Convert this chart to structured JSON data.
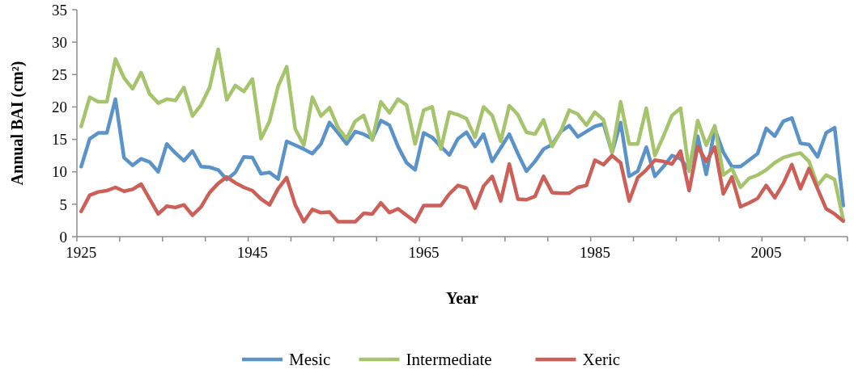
{
  "chart_data": {
    "type": "line",
    "xlabel": "Year",
    "ylabel": "Annual BAI (cm²)",
    "categories": [
      "1925",
      null,
      null,
      null,
      null,
      null,
      null,
      null,
      null,
      null,
      null,
      null,
      null,
      null,
      null,
      null,
      null,
      null,
      null,
      null,
      "1945",
      null,
      null,
      null,
      null,
      null,
      null,
      null,
      null,
      null,
      null,
      null,
      null,
      null,
      null,
      null,
      null,
      null,
      null,
      null,
      "1965",
      null,
      null,
      null,
      null,
      null,
      null,
      null,
      null,
      null,
      null,
      null,
      null,
      null,
      null,
      null,
      null,
      null,
      null,
      null,
      "1985",
      null,
      null,
      null,
      null,
      null,
      null,
      null,
      null,
      null,
      null,
      null,
      null,
      null,
      null,
      null,
      null,
      null,
      null,
      null,
      "2005",
      null,
      null,
      null,
      null,
      null,
      null,
      null,
      null,
      null
    ],
    "ylim": [
      0,
      35
    ],
    "yticks": [
      0,
      5,
      10,
      15,
      20,
      25,
      30,
      35
    ],
    "legend": "bottom",
    "marker": "none",
    "line_style": "solid",
    "series": [
      {
        "name": "Mesic",
        "color": "#5b93c9",
        "values": [
          10.8,
          15.1,
          16.0,
          16.0,
          21.2,
          12.2,
          11.0,
          12.0,
          11.5,
          10.0,
          14.3,
          12.9,
          11.7,
          13.2,
          10.8,
          10.7,
          10.3,
          8.8,
          9.9,
          12.3,
          12.2,
          9.7,
          9.9,
          8.9,
          14.7,
          14.1,
          13.5,
          12.8,
          14.3,
          17.6,
          16.0,
          14.3,
          16.2,
          15.8,
          15.1,
          17.9,
          17.2,
          13.9,
          11.4,
          10.3,
          16.0,
          15.3,
          13.9,
          12.6,
          15.1,
          16.1,
          13.9,
          15.8,
          11.6,
          13.7,
          15.8,
          12.8,
          10.1,
          11.6,
          13.5,
          14.2,
          16.2,
          17.1,
          15.4,
          16.2,
          17.0,
          17.4,
          13.0,
          17.6,
          9.3,
          10.1,
          13.8,
          9.3,
          10.8,
          12.5,
          12.0,
          10.3,
          15.5,
          9.6,
          16.6,
          13.0,
          10.8,
          10.8,
          11.8,
          12.8,
          16.7,
          15.5,
          17.8,
          18.3,
          14.4,
          14.2,
          12.3,
          16.0,
          16.8,
          4.8
        ]
      },
      {
        "name": "Intermediate",
        "color": "#a5c46b",
        "values": [
          17.0,
          21.5,
          20.8,
          20.8,
          27.4,
          24.5,
          22.8,
          25.3,
          22.0,
          20.6,
          21.2,
          21.0,
          23.0,
          18.6,
          20.3,
          23.0,
          28.9,
          21.1,
          23.3,
          22.4,
          24.3,
          15.1,
          17.8,
          23.2,
          26.2,
          16.6,
          14.1,
          21.5,
          18.6,
          19.9,
          16.8,
          15.1,
          17.8,
          18.7,
          14.9,
          20.8,
          19.1,
          21.2,
          20.3,
          14.3,
          19.5,
          20.0,
          13.5,
          19.2,
          18.8,
          18.2,
          15.3,
          20.0,
          18.7,
          14.7,
          20.2,
          18.8,
          16.1,
          15.8,
          18.0,
          13.9,
          16.2,
          19.5,
          18.9,
          17.2,
          19.2,
          18.0,
          13.0,
          20.8,
          14.3,
          14.3,
          19.8,
          12.5,
          15.5,
          18.7,
          19.8,
          10.1,
          17.9,
          14.1,
          17.1,
          9.5,
          10.5,
          7.6,
          9.0,
          9.5,
          10.3,
          11.4,
          12.2,
          12.6,
          12.9,
          11.6,
          7.9,
          9.5,
          8.8,
          2.6
        ]
      },
      {
        "name": "Xeric",
        "color": "#cc6059",
        "values": [
          3.9,
          6.4,
          6.9,
          7.1,
          7.6,
          7.0,
          7.3,
          8.1,
          5.8,
          3.5,
          4.7,
          4.5,
          4.9,
          3.3,
          4.6,
          6.8,
          8.2,
          9.2,
          8.3,
          7.6,
          7.1,
          5.8,
          4.9,
          7.4,
          9.1,
          4.9,
          2.3,
          4.2,
          3.7,
          3.8,
          2.3,
          2.3,
          2.3,
          3.6,
          3.5,
          5.2,
          3.7,
          4.3,
          3.3,
          2.3,
          4.8,
          4.8,
          4.8,
          6.6,
          7.9,
          7.5,
          4.4,
          7.8,
          9.3,
          5.5,
          11.2,
          5.8,
          5.7,
          6.2,
          9.3,
          6.8,
          6.7,
          6.7,
          7.6,
          7.9,
          11.8,
          11.1,
          12.5,
          11.4,
          5.5,
          9.1,
          10.3,
          11.8,
          11.6,
          11.2,
          13.2,
          7.1,
          13.9,
          11.6,
          13.8,
          6.6,
          9.2,
          4.6,
          5.2,
          5.9,
          7.9,
          6.0,
          8.2,
          11.1,
          7.4,
          10.5,
          7.4,
          4.3,
          3.5,
          2.4
        ]
      }
    ]
  }
}
